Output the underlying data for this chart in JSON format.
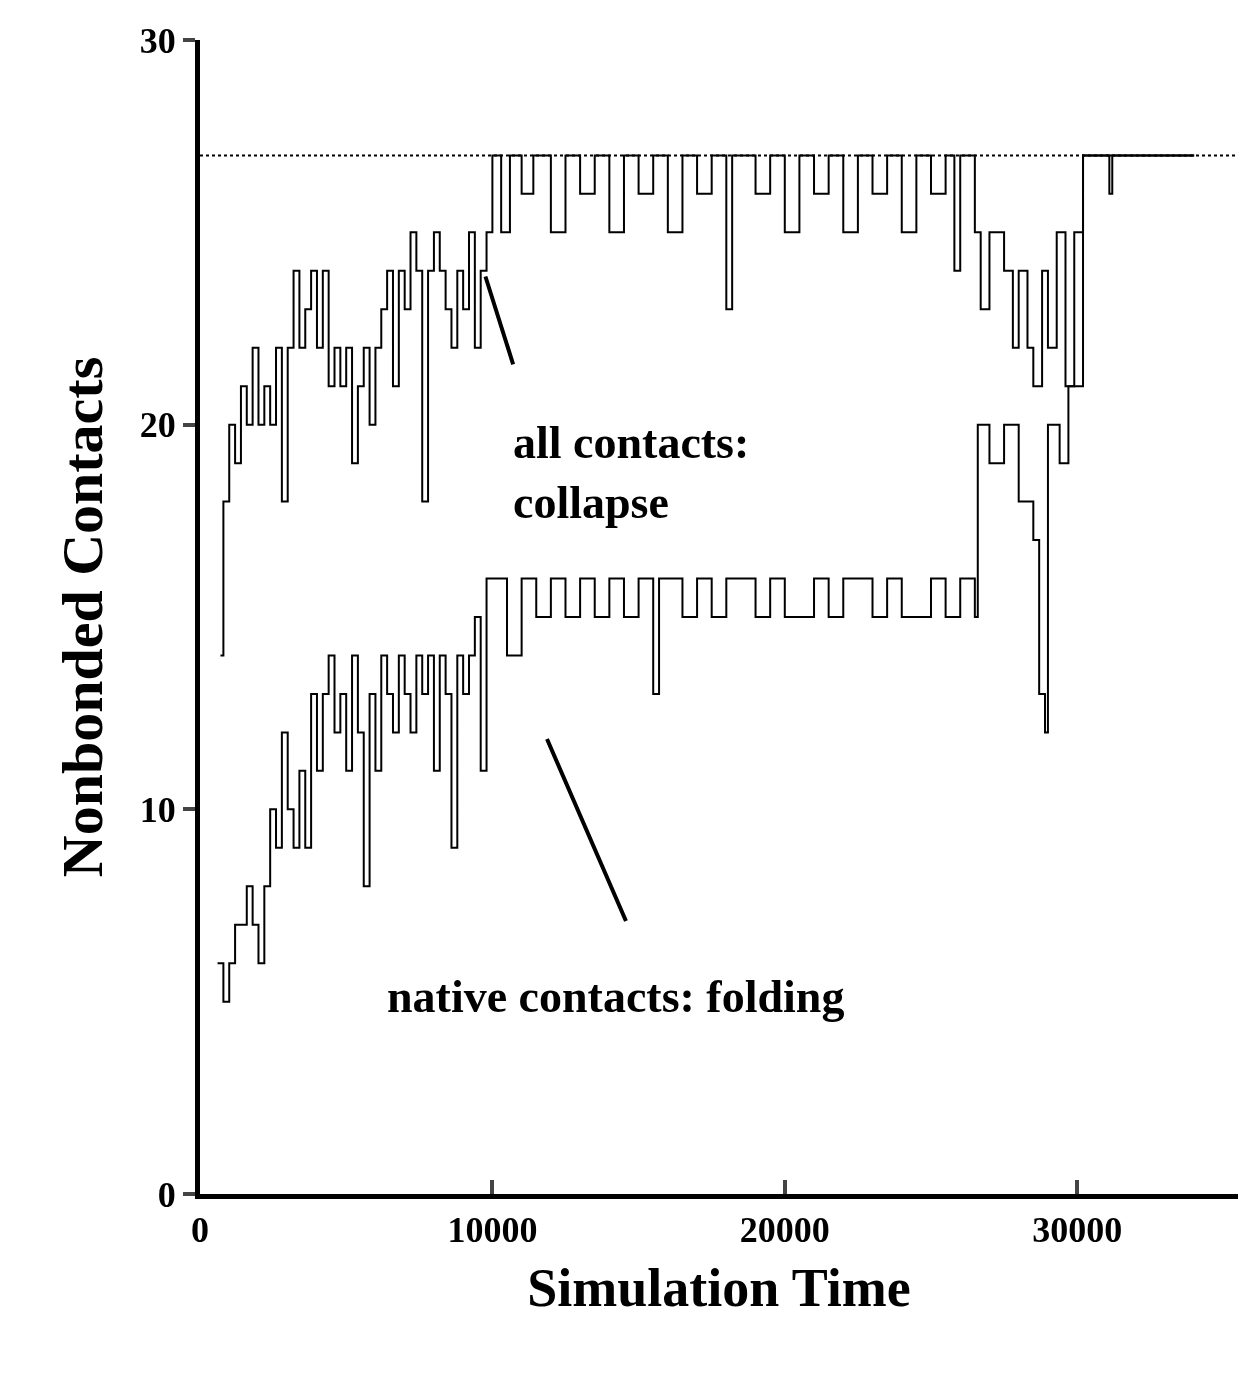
{
  "chart_data": {
    "type": "step",
    "xlabel": "Simulation Time",
    "ylabel": "Nonbonded Contacts",
    "xlim": [
      0,
      35500
    ],
    "xticks": [
      0,
      10000,
      20000,
      30000
    ],
    "ylim": [
      0,
      30
    ],
    "yticks": [
      0,
      10,
      20,
      30
    ],
    "grid": false,
    "marker": "none",
    "line_style": "solid",
    "ref_lines": [
      {
        "axis": "y",
        "value": 27,
        "line_style": "dotted",
        "color": "#000000"
      }
    ],
    "annotations": [
      {
        "text": "all contacts:\ncollapse",
        "x": 9700,
        "y": 24
      },
      "native contacts: folding"
    ],
    "series": [
      {
        "color": "#000000",
        "x": [
          700,
          800,
          1000,
          1200,
          1400,
          1600,
          1800,
          2000,
          2200,
          2400,
          2600,
          2800,
          3000,
          3200,
          3400,
          3600,
          3800,
          4000,
          4200,
          4400,
          4600,
          4800,
          5000,
          5200,
          5400,
          5600,
          5800,
          6000,
          6200,
          6400,
          6600,
          6800,
          7000,
          7200,
          7400,
          7600,
          7800,
          8000,
          8200,
          8400,
          8600,
          8800,
          9000,
          9200,
          9400,
          9600,
          9800,
          10000,
          10300,
          10600,
          11000,
          11400,
          12000,
          12500,
          13000,
          13500,
          14000,
          14500,
          15000,
          15500,
          16000,
          16500,
          17000,
          17500,
          18000,
          18200,
          19000,
          19500,
          20000,
          20500,
          21000,
          21500,
          22000,
          22500,
          23000,
          23500,
          24000,
          24500,
          25000,
          25500,
          25800,
          26000,
          26500,
          26700,
          27000,
          27500,
          27800,
          28000,
          28300,
          28500,
          28800,
          29000,
          29300,
          29600,
          29900,
          30200,
          31100,
          31200,
          34000
        ],
        "values": [
          14,
          18,
          20,
          19,
          21,
          20,
          22,
          20,
          21,
          20,
          22,
          18,
          22,
          24,
          22,
          23,
          24,
          22,
          24,
          21,
          22,
          21,
          22,
          19,
          21,
          22,
          20,
          22,
          23,
          24,
          21,
          24,
          23,
          25,
          24,
          18,
          24,
          25,
          24,
          23,
          22,
          24,
          23,
          25,
          22,
          24,
          25,
          27,
          25,
          27,
          26,
          27,
          25,
          27,
          26,
          27,
          25,
          27,
          26,
          27,
          25,
          27,
          26,
          27,
          23,
          27,
          26,
          27,
          25,
          27,
          26,
          27,
          25,
          27,
          26,
          27,
          25,
          27,
          26,
          27,
          24,
          27,
          25,
          23,
          25,
          24,
          22,
          24,
          22,
          21,
          24,
          22,
          25,
          21,
          25,
          27,
          26,
          27,
          27
        ]
      },
      {
        "color": "#000000",
        "x": [
          600,
          800,
          1000,
          1200,
          1400,
          1600,
          1800,
          2000,
          2200,
          2400,
          2600,
          2800,
          3000,
          3200,
          3400,
          3600,
          3800,
          4000,
          4200,
          4400,
          4600,
          4800,
          5000,
          5200,
          5400,
          5600,
          5800,
          6000,
          6200,
          6400,
          6600,
          6800,
          7000,
          7200,
          7400,
          7600,
          7800,
          8000,
          8200,
          8400,
          8600,
          8800,
          9000,
          9200,
          9400,
          9600,
          9800,
          10000,
          10500,
          11000,
          11500,
          12000,
          12500,
          13000,
          13500,
          14000,
          14500,
          15000,
          15500,
          15700,
          16500,
          17000,
          17500,
          18000,
          19000,
          19500,
          20000,
          21000,
          21500,
          22000,
          23000,
          23500,
          24000,
          25000,
          25500,
          26000,
          26500,
          26600,
          27000,
          27500,
          28000,
          28500,
          28700,
          28900,
          29000,
          29400,
          29700,
          30200,
          34000
        ],
        "values": [
          6,
          5,
          6,
          7,
          7,
          8,
          7,
          6,
          8,
          10,
          9,
          12,
          10,
          9,
          11,
          9,
          13,
          11,
          13,
          14,
          12,
          13,
          11,
          14,
          12,
          8,
          13,
          11,
          14,
          13,
          12,
          14,
          13,
          12,
          14,
          13,
          14,
          11,
          14,
          13,
          9,
          14,
          13,
          14,
          15,
          11,
          16,
          16,
          14,
          16,
          15,
          16,
          15,
          16,
          15,
          16,
          15,
          16,
          13,
          16,
          15,
          16,
          15,
          16,
          15,
          16,
          15,
          16,
          15,
          16,
          15,
          16,
          15,
          16,
          15,
          16,
          15,
          20,
          19,
          20,
          18,
          17,
          13,
          12,
          20,
          19,
          21,
          27,
          27
        ]
      }
    ]
  }
}
